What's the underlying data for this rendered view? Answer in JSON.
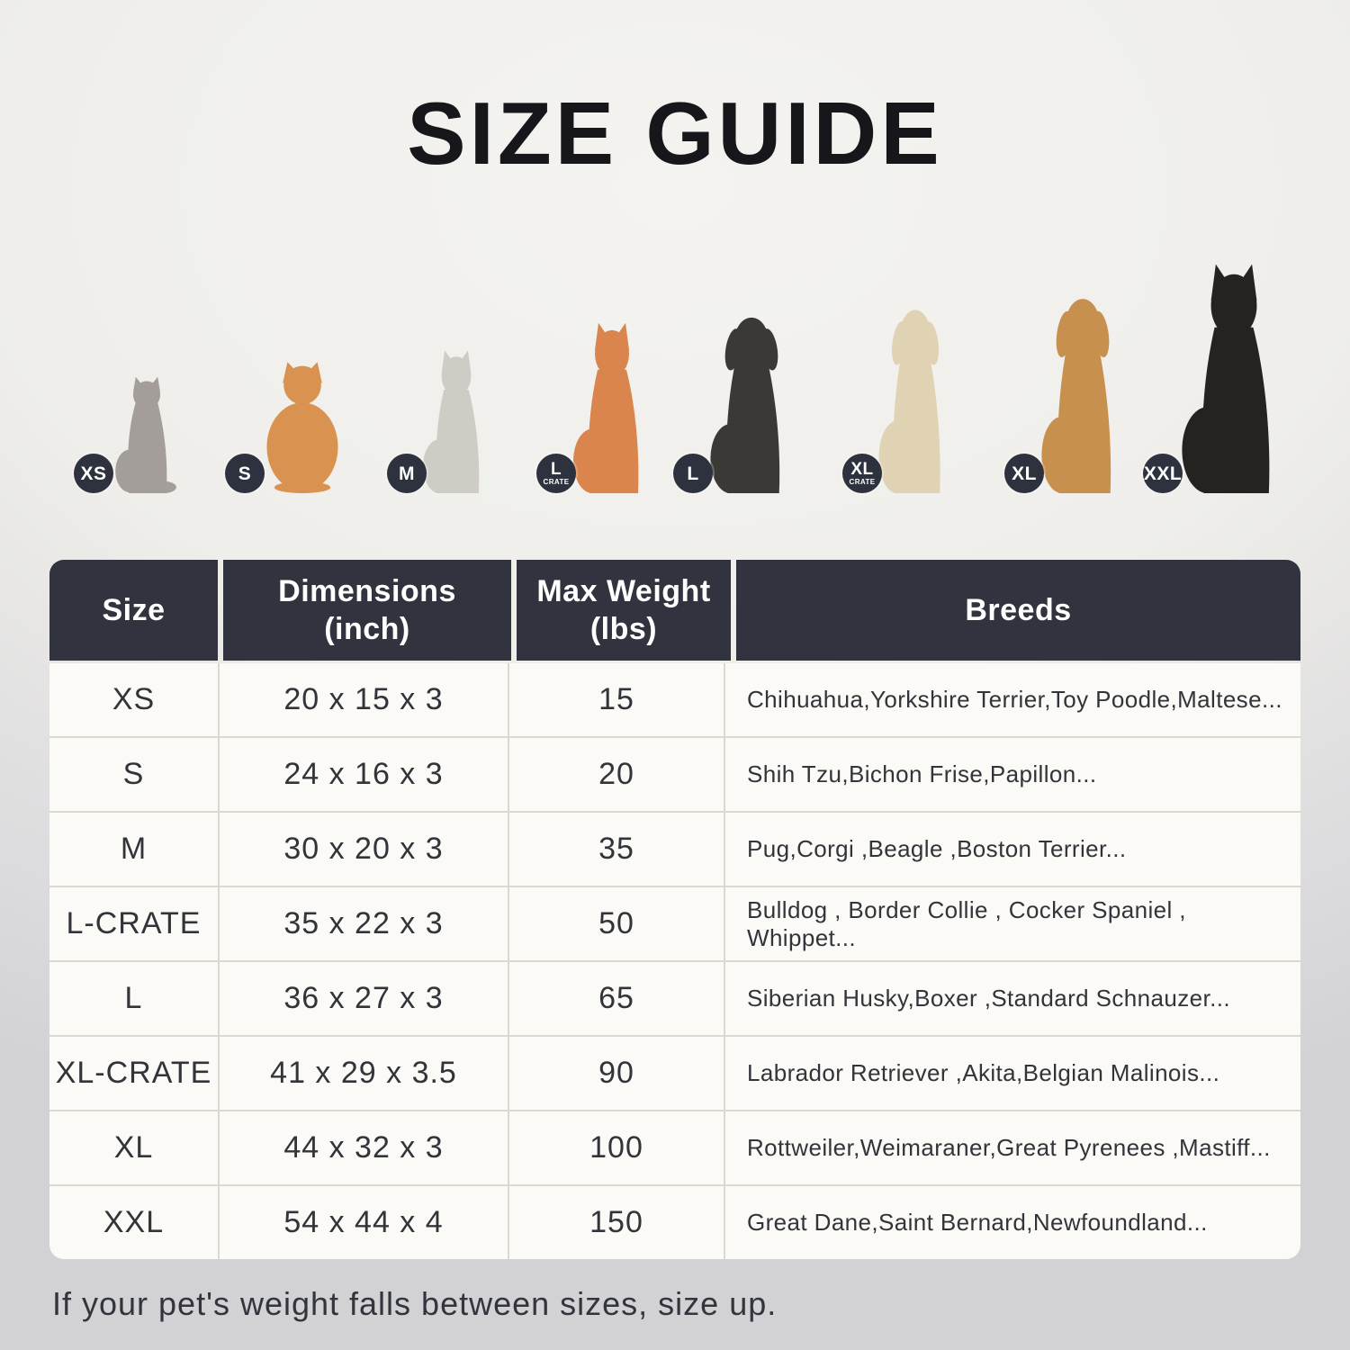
{
  "title": "SIZE GUIDE",
  "footer_note": "If your pet's weight falls between sizes, size up.",
  "colors": {
    "header_bg": "#31343e",
    "badge_bg": "#2e323e",
    "cell_bg": "#fbfaf7",
    "separator": "#dcd8d1",
    "page_top": "#f4f3ef",
    "page_bottom": "#d2d1d3",
    "title_color": "#17161a",
    "table_text": "#33343a"
  },
  "pets": [
    {
      "animal": "cat",
      "shape": "cat",
      "color": "#a49e9b",
      "badge": {
        "main": "XS",
        "sub": ""
      }
    },
    {
      "animal": "pomeranian",
      "shape": "dog-fluffy",
      "color": "#d9924f",
      "badge": {
        "main": "S",
        "sub": ""
      }
    },
    {
      "animal": "french-bulldog",
      "shape": "dog-pointy",
      "color": "#cfccc6",
      "badge": {
        "main": "M",
        "sub": ""
      }
    },
    {
      "animal": "shiba-inu",
      "shape": "dog-pointy",
      "color": "#d9854d",
      "badge": {
        "main": "L",
        "sub": "CRATE"
      }
    },
    {
      "animal": "border-collie",
      "shape": "dog-floppy",
      "color": "#3b3936",
      "badge": {
        "main": "L",
        "sub": ""
      }
    },
    {
      "animal": "labrador-retriever",
      "shape": "dog-floppy",
      "color": "#e0d3b4",
      "badge": {
        "main": "XL",
        "sub": "CRATE"
      }
    },
    {
      "animal": "golden-retriever",
      "shape": "dog-floppy",
      "color": "#c8904f",
      "badge": {
        "main": "XL",
        "sub": ""
      }
    },
    {
      "animal": "doberman",
      "shape": "dog-pointy",
      "color": "#26221f",
      "badge": {
        "main": "XXL",
        "sub": ""
      }
    }
  ],
  "table": {
    "headers": [
      "Size",
      "Dimensions\n(inch)",
      "Max Weight\n(lbs)",
      "Breeds"
    ],
    "rows": [
      [
        "XS",
        "20 x 15 x 3",
        "15",
        "Chihuahua,Yorkshire Terrier,Toy Poodle,Maltese..."
      ],
      [
        "S",
        "24 x 16 x 3",
        "20",
        "Shih Tzu,Bichon Frise,Papillon..."
      ],
      [
        "M",
        "30 x 20 x 3",
        "35",
        "Pug,Corgi ,Beagle ,Boston Terrier..."
      ],
      [
        "L-CRATE",
        "35 x 22 x 3",
        "50",
        "Bulldog , Border Collie , Cocker Spaniel , Whippet..."
      ],
      [
        "L",
        "36 x 27 x 3",
        "65",
        "Siberian Husky,Boxer ,Standard Schnauzer..."
      ],
      [
        "XL-CRATE",
        "41 x 29 x 3.5",
        "90",
        "Labrador Retriever ,Akita,Belgian Malinois..."
      ],
      [
        "XL",
        "44 x 32 x 3",
        "100",
        "Rottweiler,Weimaraner,Great Pyrenees ,Mastiff..."
      ],
      [
        "XXL",
        "54 x 44 x 4",
        "150",
        "Great Dane,Saint Bernard,Newfoundland..."
      ]
    ]
  }
}
